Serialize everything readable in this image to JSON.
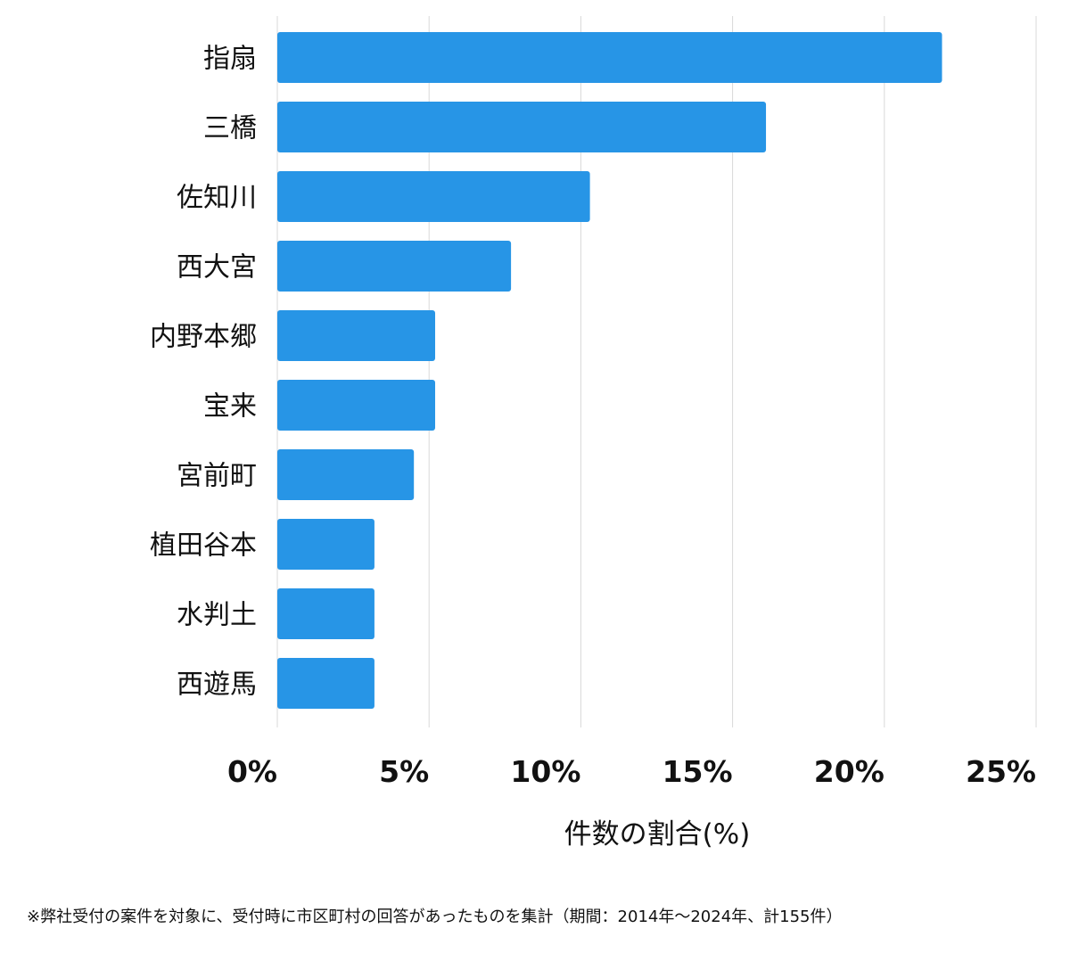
{
  "chart_data": {
    "type": "bar",
    "orientation": "horizontal",
    "categories": [
      "指扇",
      "三橋",
      "佐知川",
      "西大宮",
      "内野本郷",
      "宝来",
      "宮前町",
      "植田谷本",
      "水判土",
      "西遊馬"
    ],
    "values": [
      21.9,
      16.1,
      10.3,
      7.7,
      5.2,
      5.2,
      4.5,
      3.2,
      3.2,
      3.2
    ],
    "xlabel": "件数の割合(%)",
    "xlim": [
      0,
      25
    ],
    "xticks": [
      0,
      5,
      10,
      15,
      20,
      25
    ],
    "xtick_labels": [
      "0%",
      "5%",
      "10%",
      "15%",
      "20%",
      "25%"
    ],
    "grid": "vertical",
    "bar_color": "#2795e6"
  },
  "footnote": "※弊社受付の案件を対象に、受付時に市区町村の回答があったものを集計（期間：2014年〜2024年、計155件）"
}
